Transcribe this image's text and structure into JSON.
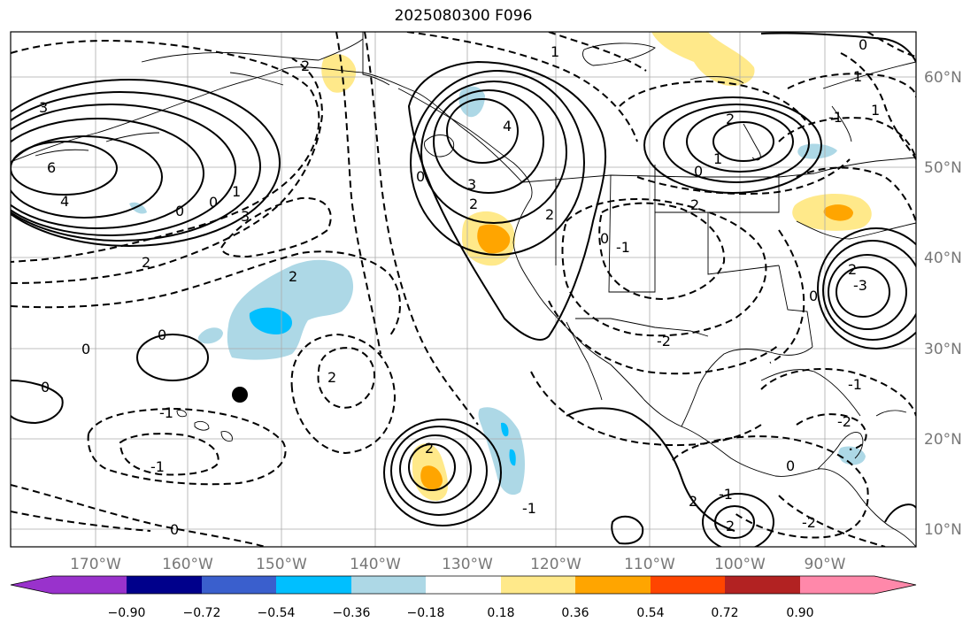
{
  "title": "2025080300 F096",
  "axes": {
    "lon_labels": [
      "170°W",
      "160°W",
      "150°W",
      "140°W",
      "130°W",
      "120°W",
      "110°W",
      "100°W",
      "90°W"
    ],
    "lat_labels": [
      "60°N",
      "50°N",
      "40°N",
      "30°N",
      "20°N",
      "10°N"
    ]
  },
  "colorbar": {
    "tick_labels": [
      "−0.90",
      "−0.72",
      "−0.54",
      "−0.36",
      "−0.18",
      "0.18",
      "0.36",
      "0.54",
      "0.72",
      "0.90"
    ],
    "colors": [
      "#9932cc",
      "#00008b",
      "#3a5fcd",
      "#00bfff",
      "#add8e6",
      "#ffffff",
      "#ffe98a",
      "#ffa500",
      "#ff4500",
      "#b22222",
      "#ff88aa"
    ],
    "extend": "both"
  },
  "contour_labels": [
    "3",
    "6",
    "4",
    "1",
    "0",
    "0",
    "3",
    "2",
    "2",
    "0",
    "0",
    "-1",
    "-1",
    "0",
    "2",
    "2",
    "4",
    "3",
    "2",
    "0",
    "2",
    "1",
    "2",
    "0",
    "1",
    "2",
    "0",
    "-1",
    "-2",
    "-1",
    "1",
    "0",
    "1",
    "2",
    "0",
    "-3",
    "-1",
    "0",
    "-2",
    "2",
    "-1",
    "2",
    "-1",
    "0",
    "-2",
    "2"
  ],
  "marker": {
    "type": "filled-circle",
    "color": "#000000"
  },
  "colors": {
    "contour": "#000000",
    "grid": "#aaaaaa",
    "coast": "#000000",
    "tick_text": "#777777"
  }
}
